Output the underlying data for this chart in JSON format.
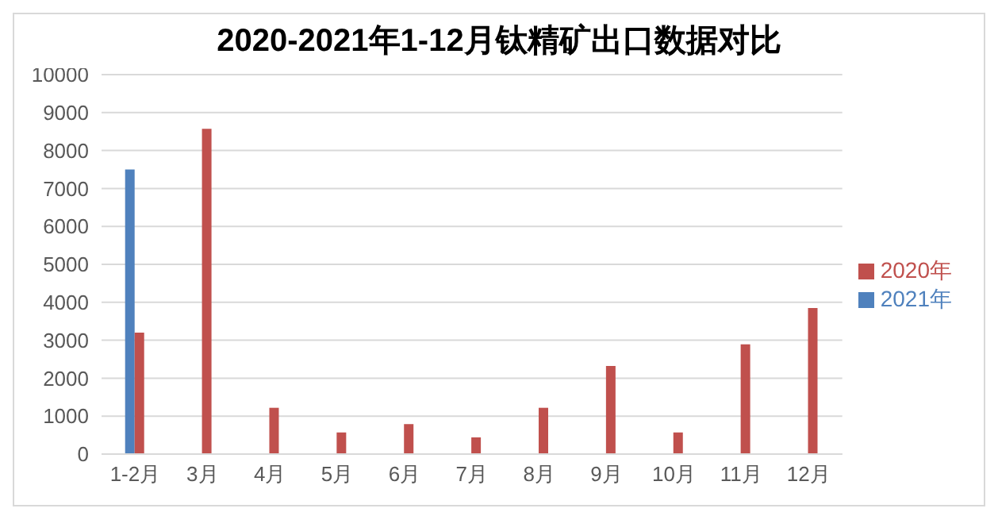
{
  "chart_data": {
    "type": "bar",
    "title": "2020-2021年1-12月钛精矿出口数据对比",
    "categories": [
      "1-2月",
      "3月",
      "4月",
      "5月",
      "6月",
      "7月",
      "8月",
      "9月",
      "10月",
      "11月",
      "12月"
    ],
    "series": [
      {
        "name": "2021年",
        "color": "#4f81bd",
        "values": [
          7500,
          null,
          null,
          null,
          null,
          null,
          null,
          null,
          null,
          null,
          null
        ]
      },
      {
        "name": "2020年",
        "color": "#c0504d",
        "values": [
          3200,
          8570,
          1220,
          570,
          790,
          440,
          1220,
          2320,
          570,
          2890,
          3850
        ]
      }
    ],
    "ylim": [
      0,
      10000
    ],
    "yticks": [
      0,
      1000,
      2000,
      3000,
      4000,
      5000,
      6000,
      7000,
      8000,
      9000,
      10000
    ],
    "grid": "y",
    "legend": "right"
  }
}
